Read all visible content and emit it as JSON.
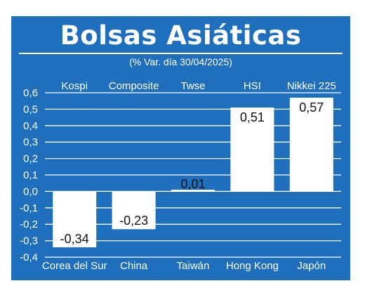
{
  "header": {
    "title": "Bolsas Asiáticas",
    "subtitle": "(% Var. día 30/04/2025)"
  },
  "colors": {
    "background": "#1f6fbd",
    "bar": "#ffffff",
    "grid": "#ffffff",
    "text": "#ffffff",
    "value_text": "#111111"
  },
  "chart_data": {
    "type": "bar",
    "title": "Bolsas Asiáticas",
    "subtitle": "(% Var. día 30/04/2025)",
    "categories": [
      "Corea del Sur",
      "China",
      "Taiwán",
      "Hong Kong",
      "Japón"
    ],
    "index_names": [
      "Kospi",
      "Composite",
      "Twse",
      "HSI",
      "Nikkei 225"
    ],
    "values": [
      -0.34,
      -0.23,
      0.01,
      0.51,
      0.57
    ],
    "value_labels": [
      "-0,34",
      "-0,23",
      "0,01",
      "0,51",
      "0,57"
    ],
    "yticks": [
      "0,6",
      "0,5",
      "0,4",
      "0,3",
      "0,2",
      "0,1",
      "0,0",
      "-0,1",
      "-0,2",
      "-0,3",
      "-0,4"
    ],
    "ylim": [
      -0.4,
      0.6
    ],
    "grid": true,
    "xlabel": "",
    "ylabel": ""
  }
}
